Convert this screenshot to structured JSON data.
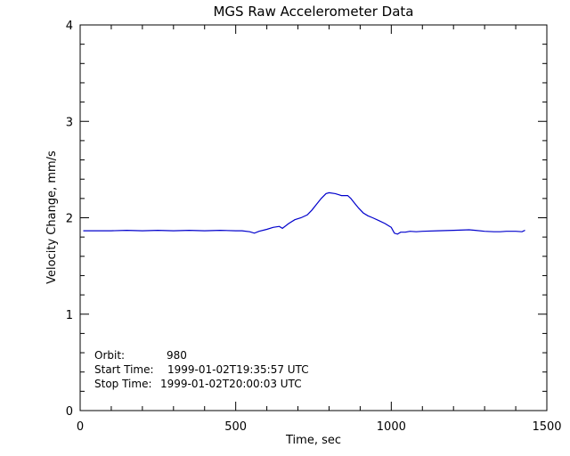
{
  "chart_data": {
    "type": "line",
    "title": "MGS Raw Accelerometer Data",
    "xlabel": "Time, sec",
    "ylabel": "Velocity Change, mm/s",
    "xlim": [
      0,
      1500
    ],
    "ylim": [
      0,
      4
    ],
    "xticks": [
      0,
      500,
      1000,
      1500
    ],
    "yticks": [
      0,
      1,
      2,
      3,
      4
    ],
    "grid": false,
    "series_color": "#0000cc",
    "annotations": [
      {
        "label": "Orbit:",
        "value": "980"
      },
      {
        "label": "Start Time:",
        "value": "1999-01-02T19:35:57 UTC"
      },
      {
        "label": "Stop Time:",
        "value": "1999-01-02T20:00:03 UTC"
      }
    ],
    "series": [
      {
        "x": [
          10,
          50,
          100,
          150,
          200,
          250,
          300,
          350,
          400,
          450,
          500,
          520,
          545,
          560,
          575,
          600,
          620,
          640,
          650,
          670,
          690,
          710,
          730,
          745,
          760,
          775,
          790,
          800,
          820,
          840,
          860,
          870,
          880,
          895,
          910,
          925,
          940,
          960,
          980,
          1000,
          1010,
          1020,
          1030,
          1045,
          1060,
          1080,
          1100,
          1150,
          1200,
          1250,
          1270,
          1300,
          1330,
          1350,
          1370,
          1400,
          1420,
          1430
        ],
        "y": [
          1.865,
          1.865,
          1.865,
          1.87,
          1.865,
          1.87,
          1.865,
          1.87,
          1.865,
          1.87,
          1.865,
          1.865,
          1.855,
          1.84,
          1.86,
          1.88,
          1.9,
          1.91,
          1.89,
          1.94,
          1.98,
          2.0,
          2.03,
          2.08,
          2.14,
          2.2,
          2.25,
          2.26,
          2.25,
          2.23,
          2.23,
          2.2,
          2.16,
          2.1,
          2.05,
          2.02,
          2.0,
          1.97,
          1.94,
          1.9,
          1.84,
          1.83,
          1.85,
          1.85,
          1.86,
          1.855,
          1.86,
          1.865,
          1.87,
          1.875,
          1.87,
          1.86,
          1.855,
          1.855,
          1.86,
          1.86,
          1.855,
          1.87
        ]
      }
    ]
  }
}
